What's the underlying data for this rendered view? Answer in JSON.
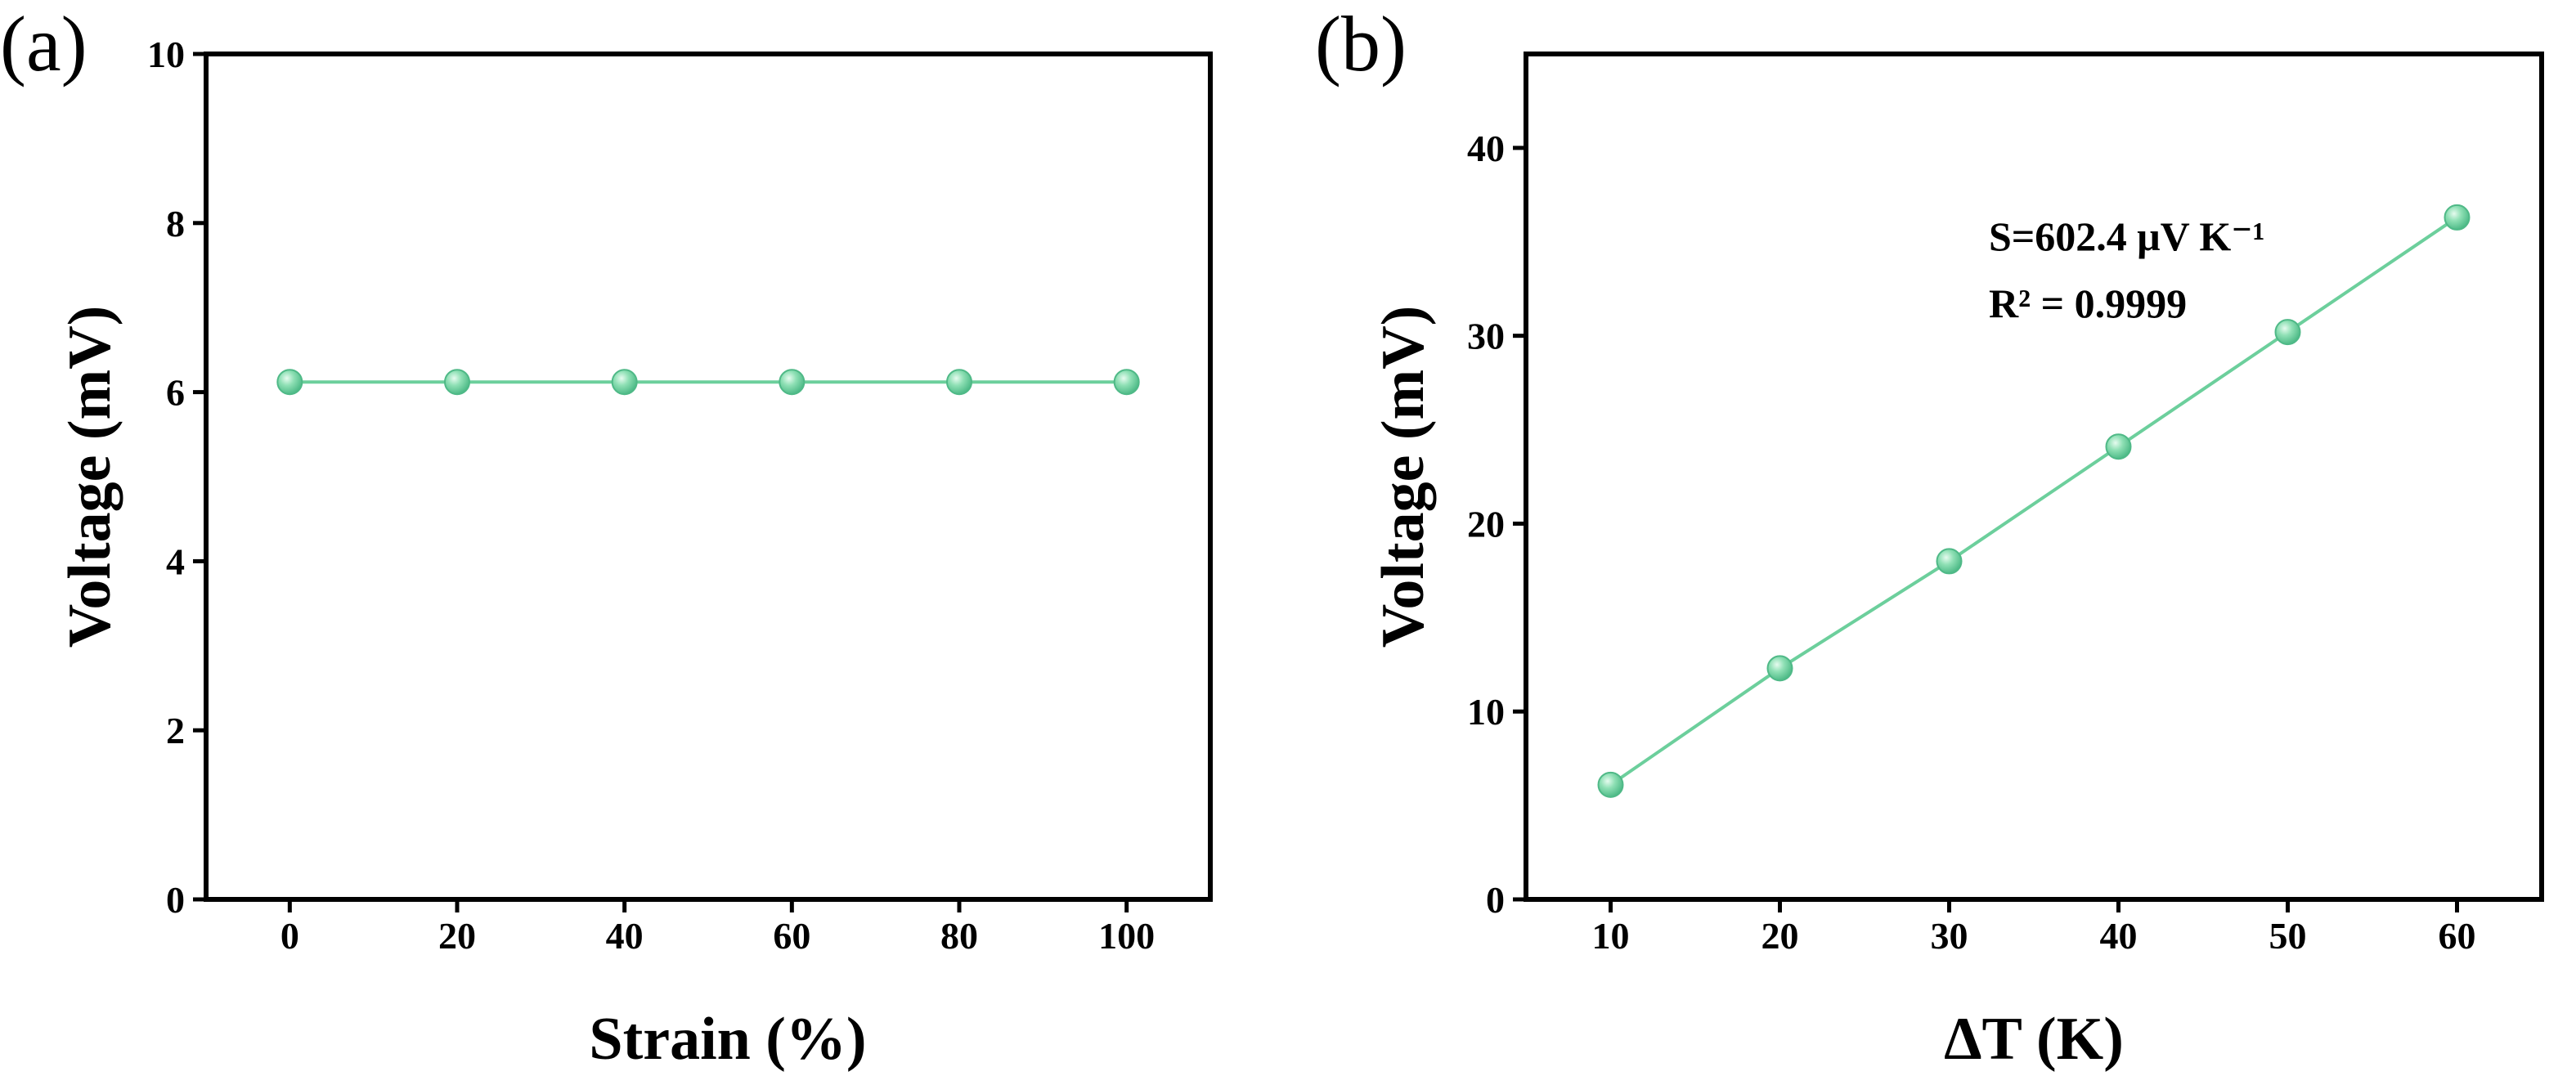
{
  "colors": {
    "series": "#6ccf9c",
    "marker_fill": "#7fdcaa",
    "marker_highlight": "#e6fbef",
    "axis": "#000000"
  },
  "chart_data": [
    {
      "type": "line",
      "panel_label": "(a)",
      "title": "",
      "xlabel": "Strain (%)",
      "ylabel": "Voltage (mV)",
      "x": [
        0,
        20,
        40,
        60,
        80,
        100
      ],
      "series": [
        {
          "name": "Voltage",
          "values": [
            6.12,
            6.12,
            6.12,
            6.12,
            6.12,
            6.12
          ]
        }
      ],
      "xlim": [
        -10,
        110
      ],
      "ylim": [
        0,
        10
      ],
      "xticks": [
        0,
        20,
        40,
        60,
        80,
        100
      ],
      "yticks": [
        0,
        2,
        4,
        6,
        8,
        10
      ],
      "xtick_labels": [
        "0",
        "20",
        "40",
        "60",
        "80",
        "100"
      ],
      "ytick_labels": [
        "0",
        "2",
        "4",
        "6",
        "8",
        "10"
      ],
      "grid": false,
      "annotations": []
    },
    {
      "type": "line",
      "panel_label": "(b)",
      "title": "",
      "xlabel": "ΔT (K)",
      "ylabel": "Voltage (mV)",
      "x": [
        10,
        20,
        30,
        40,
        50,
        60
      ],
      "series": [
        {
          "name": "Voltage",
          "values": [
            6.1,
            12.3,
            18.0,
            24.1,
            30.2,
            36.3
          ]
        }
      ],
      "xlim": [
        5,
        65
      ],
      "ylim": [
        0,
        45
      ],
      "xticks": [
        10,
        20,
        30,
        40,
        50,
        60
      ],
      "yticks": [
        0,
        10,
        20,
        30,
        40
      ],
      "xtick_labels": [
        "10",
        "20",
        "30",
        "40",
        "50",
        "60"
      ],
      "ytick_labels": [
        "0",
        "10",
        "20",
        "30",
        "40"
      ],
      "grid": false,
      "annotations": [
        "S=602.4 μV K⁻¹",
        "R² = 0.9999"
      ]
    }
  ]
}
